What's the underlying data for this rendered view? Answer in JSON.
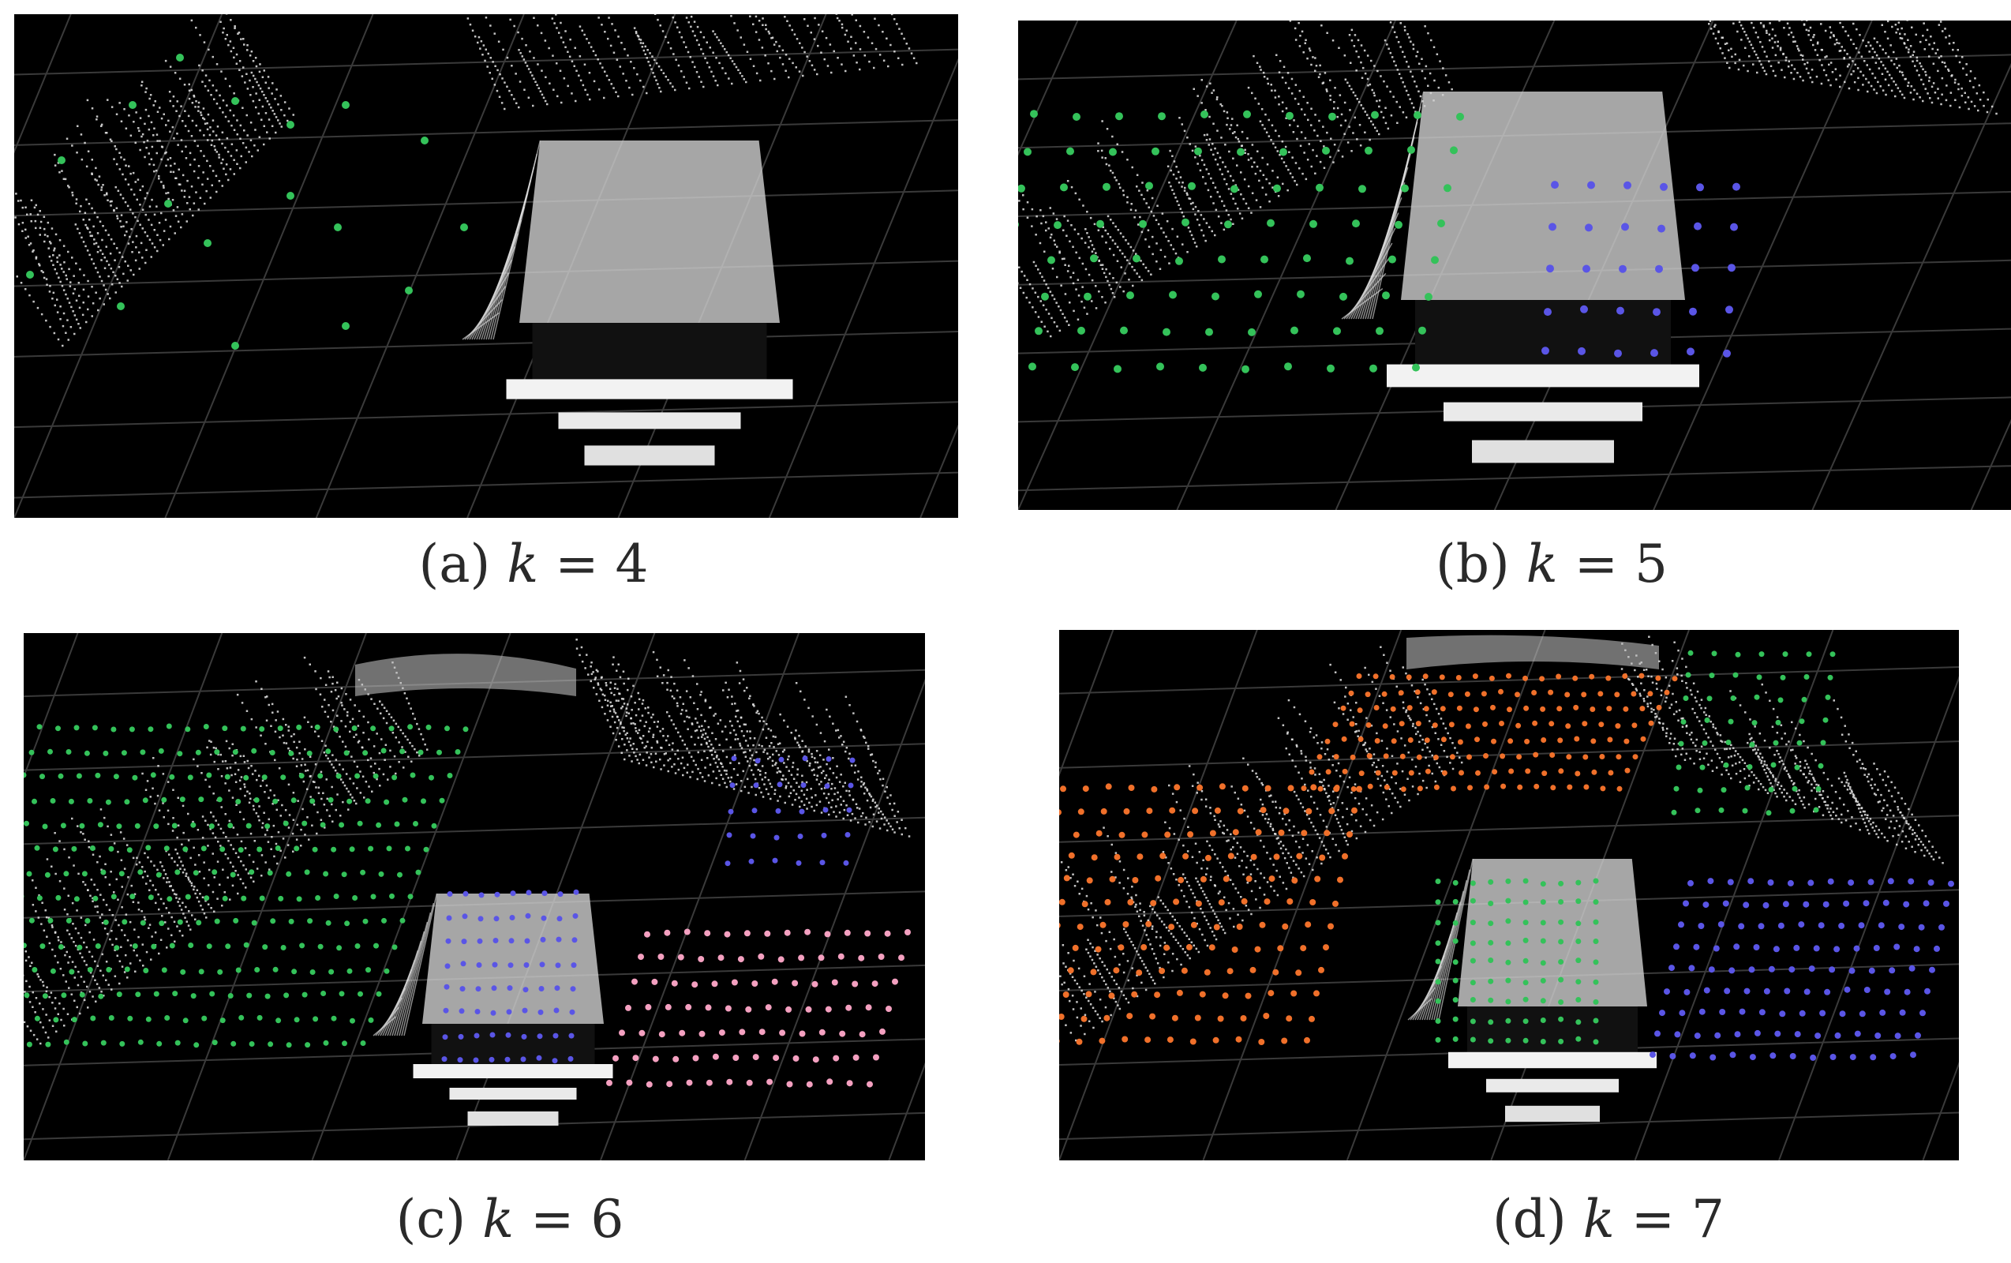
{
  "colors": {
    "background": "#000000",
    "lidar_points": "#e6e6e6",
    "grid_lines": "#3a3a3a",
    "cluster_green": "#34c25a",
    "cluster_blue": "#5a55e6",
    "cluster_pink": "#f4a0c0",
    "cluster_orange": "#f0702a"
  },
  "figures": [
    {
      "id": "a",
      "label": "(a)",
      "var": "k",
      "eq": "= 4",
      "clusters": [
        "cluster_green"
      ]
    },
    {
      "id": "b",
      "label": "(b)",
      "var": "k",
      "eq": "= 5",
      "clusters": [
        "cluster_green",
        "cluster_blue"
      ]
    },
    {
      "id": "c",
      "label": "(c)",
      "var": "k",
      "eq": "= 6",
      "clusters": [
        "cluster_green",
        "cluster_blue",
        "cluster_pink"
      ]
    },
    {
      "id": "d",
      "label": "(d)",
      "var": "k",
      "eq": "= 7",
      "clusters": [
        "cluster_orange",
        "cluster_green",
        "cluster_blue"
      ]
    }
  ]
}
